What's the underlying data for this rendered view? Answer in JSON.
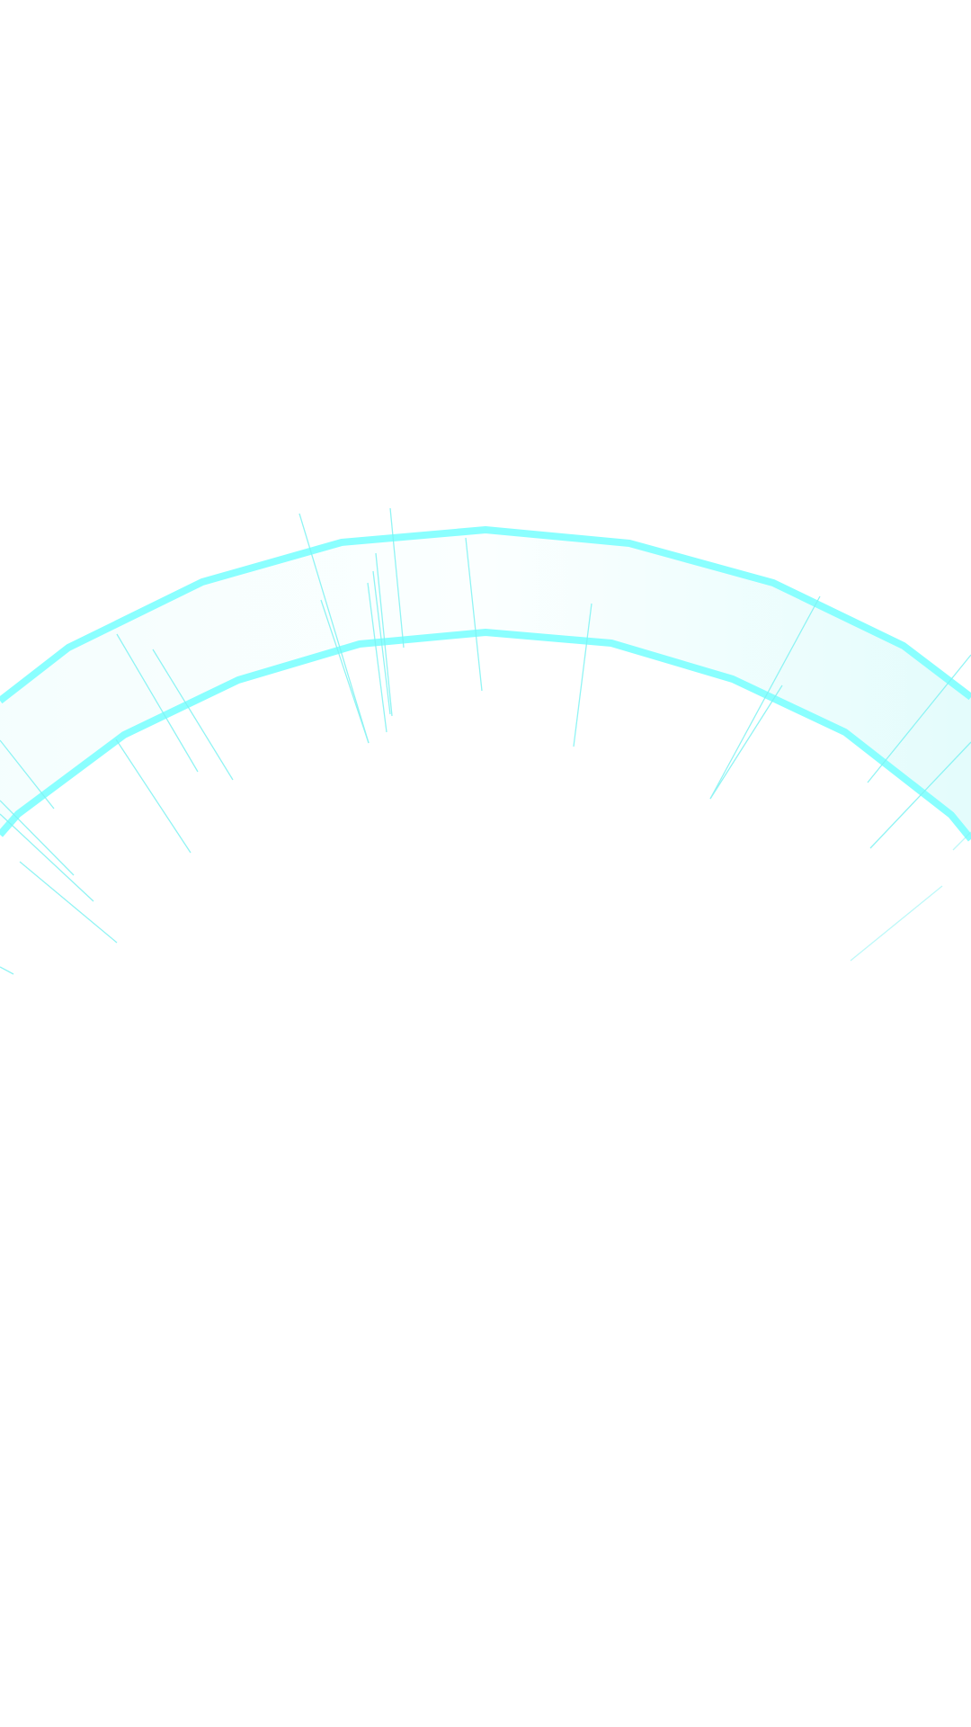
{
  "colors": {
    "background": "#ffffff",
    "arc_stroke": "#8affff",
    "arc_fill_light": "#fafefe",
    "arc_fill_right": "#e4fdfd",
    "streak": "#7ff3f3"
  },
  "elements": {
    "arc_band": "cyan-arc-band",
    "streaks": "light-streaks"
  }
}
